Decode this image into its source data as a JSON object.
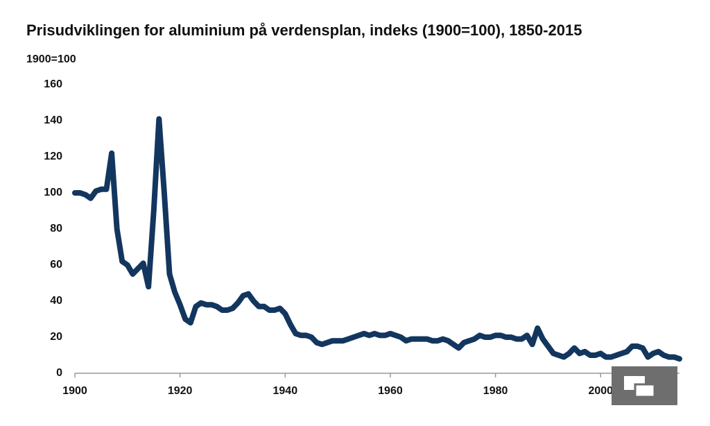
{
  "chart_data": {
    "type": "line",
    "title": "Prisudviklingen for aluminium på verdensplan, indeks (1900=100), 1850-2015",
    "y_label": "1900=100",
    "x": [
      1900,
      1901,
      1902,
      1903,
      1904,
      1905,
      1906,
      1907,
      1908,
      1909,
      1910,
      1911,
      1912,
      1913,
      1914,
      1915,
      1916,
      1917,
      1918,
      1919,
      1920,
      1921,
      1922,
      1923,
      1924,
      1925,
      1926,
      1927,
      1928,
      1929,
      1930,
      1931,
      1932,
      1933,
      1934,
      1935,
      1936,
      1937,
      1938,
      1939,
      1940,
      1941,
      1942,
      1943,
      1944,
      1945,
      1946,
      1947,
      1948,
      1949,
      1950,
      1951,
      1952,
      1953,
      1954,
      1955,
      1956,
      1957,
      1958,
      1959,
      1960,
      1961,
      1962,
      1963,
      1964,
      1965,
      1966,
      1967,
      1968,
      1969,
      1970,
      1971,
      1972,
      1973,
      1974,
      1975,
      1976,
      1977,
      1978,
      1979,
      1980,
      1981,
      1982,
      1983,
      1984,
      1985,
      1986,
      1987,
      1988,
      1989,
      1990,
      1991,
      1992,
      1993,
      1994,
      1995,
      1996,
      1997,
      1998,
      1999,
      2000,
      2001,
      2002,
      2003,
      2004,
      2005,
      2006,
      2007,
      2008,
      2009,
      2010,
      2011,
      2012,
      2013,
      2014,
      2015
    ],
    "series": [
      {
        "name": "Aluminium",
        "color": "#13365f",
        "values": [
          100,
          100,
          99,
          97,
          101,
          102,
          102,
          122,
          80,
          62,
          60,
          55,
          58,
          61,
          48,
          90,
          141,
          100,
          55,
          45,
          38,
          30,
          28,
          37,
          39,
          38,
          38,
          37,
          35,
          35,
          36,
          39,
          43,
          44,
          40,
          37,
          37,
          35,
          35,
          36,
          33,
          27,
          22,
          21,
          21,
          20,
          17,
          16,
          17,
          18,
          18,
          18,
          19,
          20,
          21,
          22,
          21,
          22,
          21,
          21,
          22,
          21,
          20,
          18,
          19,
          19,
          19,
          19,
          18,
          18,
          19,
          18,
          16,
          14,
          17,
          18,
          19,
          21,
          20,
          20,
          21,
          21,
          20,
          20,
          19,
          19,
          21,
          16,
          25,
          19,
          15,
          11,
          10,
          9,
          11,
          14,
          11,
          12,
          10,
          10,
          11,
          9,
          9,
          10,
          11,
          12,
          15,
          15,
          14,
          9,
          11,
          12,
          10,
          9,
          9,
          8
        ]
      }
    ],
    "xlim": [
      1900,
      2015
    ],
    "ylim": [
      0,
      160
    ],
    "xticks": [
      1900,
      1920,
      1940,
      1960,
      1980,
      2000
    ],
    "yticks": [
      0,
      20,
      40,
      60,
      80,
      100,
      120,
      140,
      160
    ],
    "grid": false
  }
}
